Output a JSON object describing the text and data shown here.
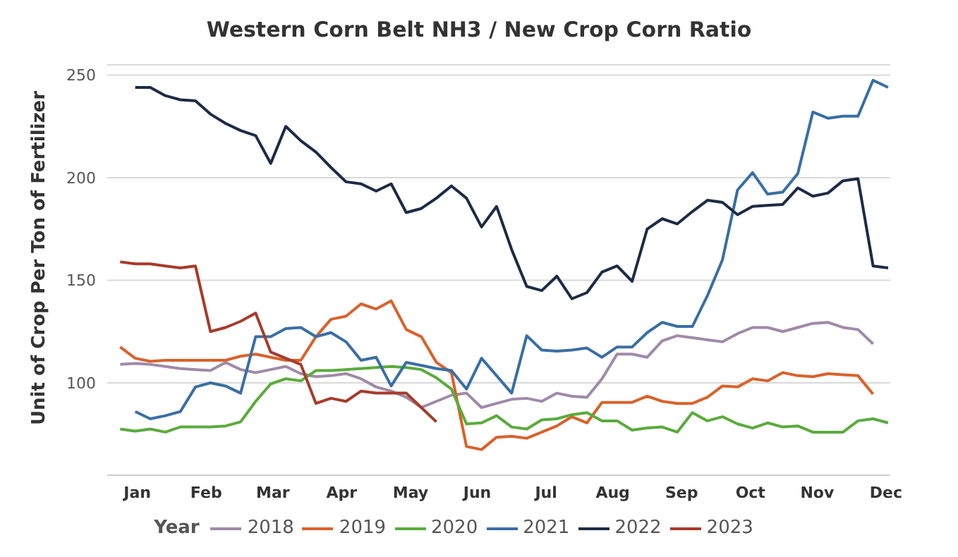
{
  "chart_data": {
    "type": "line",
    "title": "Western Corn Belt NH3 / New Crop Corn Ratio",
    "ylabel": "Unit of Crop Per Ton of Fertilizer",
    "legend_title": "Year",
    "legend": "bottom",
    "grid": "y",
    "marker": "none",
    "line_style": "solid",
    "x": [
      "--01-07",
      "--01-14",
      "--01-21",
      "--01-28",
      "--02-04",
      "--02-11",
      "--02-18",
      "--02-25",
      "--03-04",
      "--03-11",
      "--03-18",
      "--03-25",
      "--04-01",
      "--04-08",
      "--04-15",
      "--04-22",
      "--04-29",
      "--05-06",
      "--05-13",
      "--05-20",
      "--05-27",
      "--06-03",
      "--06-10",
      "--06-17",
      "--06-24",
      "--07-01",
      "--07-08",
      "--07-15",
      "--07-22",
      "--07-29",
      "--08-05",
      "--08-12",
      "--08-19",
      "--08-26",
      "--09-02",
      "--09-09",
      "--09-16",
      "--09-23",
      "--09-30",
      "--10-07",
      "--10-14",
      "--10-21",
      "--10-28",
      "--11-04",
      "--11-11",
      "--11-18",
      "--11-25",
      "--12-02",
      "--12-09",
      "--12-16",
      "--12-23",
      "--12-30"
    ],
    "xlim": [
      "--01-01",
      "--12-31"
    ],
    "xticks": [
      {
        "value": "--01-15",
        "label": "Jan"
      },
      {
        "value": "--02-16",
        "label": "Feb"
      },
      {
        "value": "--03-19",
        "label": "Mar"
      },
      {
        "value": "--04-20",
        "label": "Apr"
      },
      {
        "value": "--05-22",
        "label": "May"
      },
      {
        "value": "--06-22",
        "label": "Jun"
      },
      {
        "value": "--07-24",
        "label": "Jul"
      },
      {
        "value": "--08-24",
        "label": "Aug"
      },
      {
        "value": "--09-25",
        "label": "Sep"
      },
      {
        "value": "--10-27",
        "label": "Oct"
      },
      {
        "value": "--11-27",
        "label": "Nov"
      },
      {
        "value": "--12-29",
        "label": "Dec"
      }
    ],
    "ylim": [
      55,
      255
    ],
    "yticks": [
      100,
      150,
      200,
      250
    ],
    "series": [
      {
        "name": "2018",
        "color": "#a08aa8",
        "values": [
          109,
          109.5,
          109,
          108,
          107,
          106.5,
          106,
          110,
          106.5,
          105,
          106.5,
          108,
          104.5,
          103,
          103.5,
          104.5,
          102,
          98,
          96,
          93,
          88,
          91,
          94,
          95,
          88,
          90,
          92,
          92.5,
          91,
          95,
          93.5,
          93,
          102,
          114,
          114,
          112.5,
          120.5,
          123,
          122,
          121,
          120,
          124,
          127,
          127,
          125,
          127,
          129,
          129.5,
          127,
          126,
          119,
          null
        ]
      },
      {
        "name": "2019",
        "color": "#d9622b",
        "values": [
          117.5,
          112,
          110.5,
          111,
          111,
          111,
          111,
          111,
          113,
          114,
          112.5,
          111,
          111,
          122.5,
          131,
          132.5,
          138.5,
          136,
          140,
          126,
          122.5,
          110,
          105,
          69,
          67.5,
          73.5,
          74,
          73,
          76,
          79,
          83.5,
          80.5,
          90.5,
          90.5,
          90.5,
          93.5,
          91,
          90,
          90,
          93,
          98.5,
          98,
          102,
          101,
          105,
          103.5,
          103,
          104.5,
          104,
          103.5,
          94.5,
          null
        ]
      },
      {
        "name": "2020",
        "color": "#5aab3c",
        "values": [
          77.5,
          76.5,
          77.5,
          76,
          78.5,
          78.5,
          78.5,
          79,
          81,
          91,
          99.5,
          102,
          101,
          106,
          106,
          106.5,
          107,
          107.5,
          108,
          107.5,
          106.5,
          102.5,
          97,
          80,
          80.5,
          84,
          78.5,
          77.5,
          82,
          82.5,
          84.5,
          85.5,
          81.5,
          81.5,
          77,
          78,
          78.5,
          76,
          85.5,
          81.5,
          83.5,
          80,
          78,
          80.5,
          78.5,
          79,
          76,
          76,
          76,
          81.5,
          82.5,
          80.5
        ]
      },
      {
        "name": "2021",
        "color": "#3a6ea5",
        "values": [
          null,
          86,
          82.5,
          84,
          86,
          98,
          100,
          98.5,
          95,
          122.5,
          122.5,
          126.5,
          127,
          122.5,
          124.5,
          120,
          111,
          112.5,
          98.5,
          110,
          108.5,
          107,
          106,
          97,
          112,
          103.5,
          95,
          123,
          116,
          115.5,
          116,
          117,
          112.5,
          117.5,
          117.5,
          124.5,
          129.5,
          127.5,
          127.5,
          142.5,
          160,
          194,
          202.5,
          192,
          193,
          202,
          232,
          229,
          230,
          230,
          247.5,
          244
        ]
      },
      {
        "name": "2022",
        "color": "#1c2b45",
        "values": [
          null,
          244,
          244,
          240,
          238,
          237.5,
          231,
          226.5,
          223,
          220.5,
          207,
          225,
          218,
          212.5,
          205,
          198,
          197,
          193.5,
          197,
          183,
          185,
          190,
          196,
          190,
          176,
          186,
          165,
          147,
          145,
          152,
          141,
          144,
          154,
          157,
          149.5,
          175,
          180,
          177.5,
          183.5,
          189,
          188,
          182,
          186,
          186.5,
          187,
          195,
          191,
          192.5,
          198.5,
          199.5,
          157,
          156
        ]
      },
      {
        "name": "2023",
        "color": "#a83a2a",
        "values": [
          159,
          158,
          158,
          157,
          156,
          157,
          125,
          127,
          130,
          134,
          115,
          112,
          109,
          90,
          92.5,
          91,
          96,
          95,
          95,
          95,
          88,
          81,
          null,
          null,
          null,
          null,
          null,
          null,
          null,
          null,
          null,
          null,
          null,
          null,
          null,
          null,
          null,
          null,
          null,
          null,
          null,
          null,
          null,
          null,
          null,
          null,
          null,
          null,
          null,
          null,
          null,
          null
        ]
      }
    ]
  }
}
